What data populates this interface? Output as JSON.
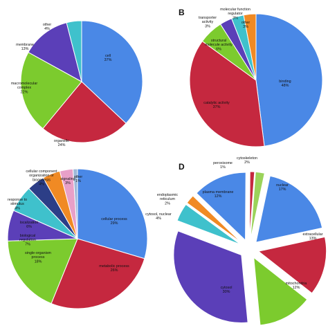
{
  "panel_letters": [
    "",
    "B",
    "",
    "D"
  ],
  "chart_data": [
    {
      "type": "pie",
      "panel": "",
      "slices": [
        {
          "label": "cell",
          "pct": "37%",
          "value": 37,
          "color": "#4a88e6",
          "explode": false
        },
        {
          "label": "organelle",
          "pct": "24%",
          "value": 24,
          "color": "#c5283f",
          "explode": false
        },
        {
          "label": "macromolecular complex",
          "pct": "22%",
          "value": 22,
          "color": "#7ccb2e",
          "explode": false
        },
        {
          "label": "membrane",
          "pct": "13%",
          "value": 13,
          "color": "#5b3fb8",
          "explode": false
        },
        {
          "label": "other",
          "pct": "4%",
          "value": 4,
          "color": "#3fc1cc",
          "explode": false
        }
      ]
    },
    {
      "type": "pie",
      "panel": "B",
      "slices": [
        {
          "label": "binding",
          "pct": "48%",
          "value": 48,
          "color": "#4a88e6",
          "explode": false
        },
        {
          "label": "catalytic activity",
          "pct": "37%",
          "value": 37,
          "color": "#c5283f",
          "explode": false
        },
        {
          "label": "structural molecule activity",
          "pct": "6%",
          "value": 6,
          "color": "#7ccb2e",
          "explode": false
        },
        {
          "label": "transporter activity",
          "pct": "3%",
          "value": 3,
          "color": "#5b3fb8",
          "explode": false
        },
        {
          "label": "molecular function regulator",
          "pct": "3%",
          "value": 3,
          "color": "#3fc1cc",
          "explode": false
        },
        {
          "label": "other",
          "pct": "3%",
          "value": 3,
          "color": "#f08a24",
          "explode": false
        }
      ]
    },
    {
      "type": "pie",
      "panel": "",
      "slices": [
        {
          "label": "cellular process",
          "pct": "29%",
          "value": 29,
          "color": "#4a88e6",
          "explode": false
        },
        {
          "label": "metabolic process",
          "pct": "26%",
          "value": 26,
          "color": "#c5283f",
          "explode": false
        },
        {
          "label": "single-organism process",
          "pct": "18%",
          "value": 18,
          "color": "#7ccb2e",
          "explode": false
        },
        {
          "label": "biological regulation",
          "pct": "7%",
          "value": 7,
          "color": "#5b3fb8",
          "explode": false
        },
        {
          "label": "localization",
          "pct": "6%",
          "value": 6,
          "color": "#3fc1cc",
          "explode": false
        },
        {
          "label": "response to stimulus",
          "pct": "4%",
          "value": 4,
          "color": "#2c3e87",
          "explode": false
        },
        {
          "label": "cellular component organization or biogenesis",
          "pct": "4%",
          "value": 4,
          "color": "#f08a24",
          "explode": false
        },
        {
          "label": "signaling",
          "pct": "3%",
          "value": 3,
          "color": "#e8a0c8",
          "explode": false
        },
        {
          "label": "other",
          "pct": "1%",
          "value": 1,
          "color": "#9fb9d9",
          "explode": false
        }
      ]
    },
    {
      "type": "pie",
      "panel": "D",
      "slices": [
        {
          "label": "nuclear",
          "pct": "17%",
          "value": 17,
          "color": "#4a88e6",
          "explode": true
        },
        {
          "label": "extracellular",
          "pct": "13%",
          "value": 13,
          "color": "#c5283f",
          "explode": true
        },
        {
          "label": "mitochondria",
          "pct": "12%",
          "value": 12,
          "color": "#7ccb2e",
          "explode": true
        },
        {
          "label": "cytosol",
          "pct": "30%",
          "value": 30,
          "color": "#5b3fb8",
          "explode": true
        },
        {
          "label": "cytosol, nuclear",
          "pct": "4%",
          "value": 4,
          "color": "#3fc1cc",
          "explode": true
        },
        {
          "label": "endoplasmic reticulum",
          "pct": "2%",
          "value": 2,
          "color": "#f08a24",
          "explode": true
        },
        {
          "label": "plasma membrane",
          "pct": "12%",
          "value": 12,
          "color": "#4a88e6",
          "explode": true
        },
        {
          "label": "peroxisome",
          "pct": "1%",
          "value": 1,
          "color": "#c5283f",
          "explode": true
        },
        {
          "label": "cytoskeleton",
          "pct": "2%",
          "value": 2,
          "color": "#9bd35a",
          "explode": true
        }
      ]
    }
  ]
}
